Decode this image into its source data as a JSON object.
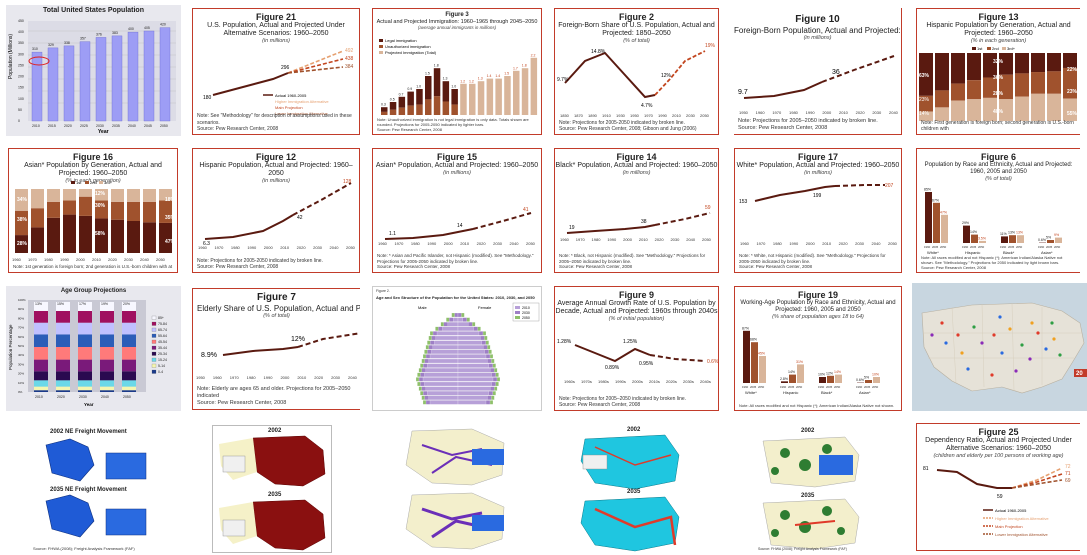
{
  "tiles": {
    "t1": {
      "title": "Total United States Population",
      "ylabel": "Population (Millions)",
      "xlabel": "Year",
      "y_ticks": [
        "0",
        "50",
        "100",
        "150",
        "200",
        "250",
        "300",
        "350",
        "400",
        "450"
      ],
      "x_ticks": [
        "2010",
        "2015",
        "2020",
        "2025",
        "2030",
        "2035",
        "2040",
        "2045",
        "2050"
      ],
      "labels": [
        "310",
        "329",
        "338",
        "357",
        "376",
        "383",
        "400",
        "405",
        "420"
      ]
    },
    "t2": {
      "num": "Figure 21",
      "title": "U.S. Population, Actual and Projected Under Alternative Scenarios: 1960–2050",
      "sub": "(in millions)",
      "labels": [
        "180",
        "296",
        "492",
        "438",
        "384"
      ],
      "legend": [
        "Actual 1960-2005",
        "Higher Immigration Alternative",
        "Main Projection",
        "Lower Immigration Alternative"
      ],
      "note": "Note: See \"Methodology\" for description of assumptions used in these scenarios.",
      "source": "Source: Pew Research Center, 2008"
    },
    "t3": {
      "num": "Figure 3",
      "title": "Actual and Projected Immigration: 1960–1965 through 2045–2050",
      "sub": "(average annual immigrants in millions)",
      "legend": [
        "Legal immigration",
        "Unauthorized immigration",
        "Projected Immigration (Total)"
      ],
      "labels": [
        "0.3",
        "0.5",
        "0.7",
        "0.9",
        "1.0",
        "1.5",
        "1.8",
        "1.3",
        "1.0",
        "1.2",
        "1.2",
        "1.3",
        "1.4",
        "1.4",
        "1.5",
        "1.7",
        "1.8",
        "2.2"
      ],
      "note": "Note: Unauthorized immigration is not legal immigration is only data. Totals shown are rounded. Projections for 2005-2050 indicated by lighter bars.",
      "source": "Source: Pew Research Center, 2008"
    },
    "t4": {
      "num": "Figure 2",
      "title": "Foreign-Born Share of U.S. Population, Actual and Projected: 1850–2050",
      "sub": "(% of total)",
      "labels": [
        "9.7%",
        "14.8%",
        "4.7%",
        "12%",
        "19%"
      ],
      "x_ticks": [
        "1850",
        "1870",
        "1890",
        "1910",
        "1930",
        "1950",
        "1970",
        "1990",
        "2010",
        "2030",
        "2050"
      ],
      "note": "Note: Projections for 2005-2050 indicated by broken line.",
      "source": "Source: Pew Research Center, 2008; Gibson and Jung (2006)"
    },
    "t5": {
      "num": "Figure 10",
      "title": "Foreign-Born Population, Actual and Projected: 196",
      "sub": "(in millions)",
      "labels": [
        "9.7",
        "36"
      ],
      "x_ticks": [
        "1950",
        "1960",
        "1970",
        "1980",
        "1990",
        "2000",
        "2010",
        "2020",
        "2030",
        "2040"
      ],
      "note": "Note: Projections for 2005–2050 indicated by broken line.",
      "source": "Source: Pew Research Center, 2008"
    },
    "t6": {
      "num": "Figure 13",
      "title": "Hispanic Population by Generation, Actual and Projected: 1960–2050",
      "sub": "(% in each generation)",
      "legend": [
        "1st",
        "2nd",
        "3rd+"
      ],
      "labels": [
        "63%",
        "23%",
        "14%",
        "32%",
        "36%",
        "28%",
        "40%",
        "22%",
        "23%",
        "55%",
        "27%",
        "33%"
      ],
      "note": "Note: First generation is foreign born; second generation is U.S.-born children with"
    },
    "t7": {
      "num": "Figure 16",
      "title": "Asian* Population by Generation, Actual and Projected: 1960–2050",
      "sub": "(% in each generation)",
      "legend": [
        "1st",
        "2nd",
        "3rd+"
      ],
      "labels": [
        "34%",
        "38%",
        "28%",
        "12%",
        "30%",
        "58%",
        "18%",
        "35%",
        "47%"
      ],
      "x_ticks": [
        "1960",
        "1970",
        "1980",
        "1990",
        "2000",
        "2010",
        "2020",
        "2030",
        "2040",
        "2050"
      ],
      "note": "Note: 1st generation is foreign born; 2nd generation is U.S.-born children with at"
    },
    "t8": {
      "num": "Figure 12",
      "title": "Hispanic Population, Actual and Projected: 1960–2050",
      "sub": "(in millions)",
      "labels": [
        "6.3",
        "42",
        "128"
      ],
      "x_ticks": [
        "1960",
        "1970",
        "1980",
        "1990",
        "2000",
        "2010",
        "2020",
        "2030",
        "2040",
        "2050"
      ],
      "note": "Note: Projections for 2005-2050 indicated by broken line.",
      "source": "Source: Pew Research Center, 2008"
    },
    "t9": {
      "num": "Figure 15",
      "title": "Asian* Population, Actual and Projected: 1960–2050",
      "sub": "(in millions)",
      "labels": [
        "1.1",
        "14",
        "41"
      ],
      "x_ticks": [
        "1960",
        "1970",
        "1980",
        "1990",
        "2000",
        "2010",
        "2020",
        "2030",
        "2040",
        "2050"
      ],
      "note": "Note: * Asian and Pacific Islander, not Hispanic (modified). See \"Methodology.\" Projections for 2005-2050 indicated by broken line.",
      "source": "Source: Pew Research Center, 2008"
    },
    "t10": {
      "num": "Figure 14",
      "title": "Black* Population, Actual and Projected: 1960–2050",
      "sub": "(in millions)",
      "labels": [
        "19",
        "38",
        "59"
      ],
      "x_ticks": [
        "1960",
        "1970",
        "1980",
        "1990",
        "2000",
        "2010",
        "2020",
        "2030",
        "2040",
        "2050"
      ],
      "note": "Note: * Black, not Hispanic (modified). See \"Methodology.\" Projections for 2005–2050 indicated by broken line.",
      "source": "Source: Pew Research Center, 2008"
    },
    "t11": {
      "num": "Figure 17",
      "title": "White* Population, Actual and Projected: 1960–2050",
      "sub": "(in millions)",
      "labels": [
        "153",
        "199",
        "207"
      ],
      "x_ticks": [
        "1960",
        "1970",
        "1980",
        "1990",
        "2000",
        "2010",
        "2020",
        "2030",
        "2040",
        "2050"
      ],
      "note": "Note: * White, not Hispanic (modified). See \"Methodology.\" Projections for 2005-2050 indicated by broken line.",
      "source": "Source: Pew Research Center, 2008"
    },
    "t12": {
      "num": "Figure 6",
      "title": "Population by Race and Ethnicity, Actual and Projected: 1960, 2005 and 2050",
      "sub": "(% of total)",
      "labels": [
        "85%",
        "67%",
        "47%",
        "29%",
        "14%",
        "3.5%",
        "11%",
        "13%",
        "13%",
        "0.6%",
        "5%",
        "9%"
      ],
      "groups": [
        "White*",
        "Hispanic",
        "Black*",
        "Asian*"
      ],
      "years": [
        "1960",
        "2005",
        "2050"
      ],
      "note": "Note: All races modified and not Hispanic (*); American Indian/Alaska Native not shown. See \"Methodology.\" Projections for 2050 indicated by light brown bars.",
      "source": "Source: Pew Research Center, 2008"
    },
    "t13": {
      "title": "Age Group Projections",
      "ylabel": "Population Percentage",
      "xlabel": "Year",
      "y_ticks": [
        "0%",
        "10%",
        "20%",
        "30%",
        "40%",
        "50%",
        "60%",
        "70%",
        "80%",
        "90%",
        "100%"
      ],
      "x_ticks": [
        "2010",
        "2015",
        "2020",
        "2025",
        "2030",
        "2035",
        "2040",
        "2045",
        "2050"
      ],
      "legend": [
        "85+",
        "75-84",
        "65-74",
        "55-64",
        "45-54",
        "35-44",
        "25-34",
        "15-24",
        "5-14",
        "0-4"
      ],
      "labels": [
        "13%",
        "14%",
        "15%",
        "16%",
        "17%",
        "18%",
        "19%",
        "20%",
        "20%"
      ]
    },
    "t14": {
      "num": "Figure 7",
      "title": "Elderly Share of U.S. Population, Actual and Projected: 1",
      "sub": "(% of total)",
      "labels": [
        "8.9%",
        "12%"
      ],
      "x_ticks": [
        "1950",
        "1960",
        "1970",
        "1980",
        "1990",
        "2000",
        "2010",
        "2020",
        "2030",
        "2040"
      ],
      "note": "Note: Elderly are ages 65 and older. Projections for 2005–2050 indicated",
      "source": "Source: Pew Research Center, 2008"
    },
    "t15": {
      "title": "Age and Sex Structure of the Population for the United States: 2010, 2030, and 2050",
      "caption": "Figure 2.",
      "male": "Male",
      "female": "Female",
      "legend": [
        "2010",
        "2030",
        "2050"
      ]
    },
    "t16": {
      "num": "Figure 9",
      "title": "Average Annual Growth Rate of U.S. Population by Decade, Actual and Projected: 1960s through 2040s",
      "sub": "(% of initial population)",
      "labels": [
        "1.28%",
        "0.89%",
        "1.25%",
        "0.95%",
        "0.6%"
      ],
      "x_ticks": [
        "1960s",
        "1970s",
        "1980s",
        "1990s",
        "2000s",
        "2010s",
        "2020s",
        "2030s",
        "2040s"
      ],
      "note": "Note: Projections for 2005–2050 indicated by broken line.",
      "source": "Source: Pew Research Center, 2008"
    },
    "t17": {
      "num": "Figure 19",
      "title": "Working-Age Population by Race and Ethnicity, Actual and Projected: 1960, 2005 and 2050",
      "sub": "(% share of population ages 18 to 64)",
      "labels": [
        "87%",
        "68%",
        "45%",
        "2.8%",
        "14%",
        "31%",
        "10%",
        "12%",
        "14%",
        "0.6%",
        "5%",
        "10%"
      ],
      "groups": [
        "White*",
        "Hispanic",
        "Black*",
        "Asian*"
      ],
      "years": [
        "1960",
        "2005",
        "2050"
      ],
      "note": "Note: All races modified and not Hispanic (*); American Indian/Alaska Native not shown."
    },
    "t18": {
      "badge": "20"
    },
    "t19": {
      "caption_top": "2002 NE Freight Movement",
      "caption_bot": "2035 NE Freight Movement",
      "source": "Source: FHWA (2008); Freight Analysis Framework (FAF)"
    },
    "t20": {
      "caption_top": "2002",
      "caption_bot": "2035"
    },
    "t21": {},
    "t22": {
      "caption_top": "2002",
      "caption_bot": "2035"
    },
    "t23": {
      "caption_top": "2002",
      "caption_bot": "2035",
      "source": "Source: FHWA (2008); Freight Analysis Framework (FAF)"
    },
    "t24": {
      "num": "Figure 25",
      "title": "Dependency Ratio, Actual and Projected Under Alternative Scenarios: 1960–2050",
      "sub": "(children and elderly per 100 persons of working age)",
      "labels": [
        "81",
        "59",
        "72",
        "71",
        "69"
      ],
      "legend": [
        "Actual 1960-2005",
        "Higher Immigration Alternative",
        "Main Projection",
        "Lower Immigration Alternative"
      ]
    }
  },
  "colors": {
    "accent": "#c23b2a",
    "dark": "#5a1a10",
    "mid": "#a0522d",
    "light": "#d9b59a",
    "periwinkle": "#9d9df5"
  }
}
